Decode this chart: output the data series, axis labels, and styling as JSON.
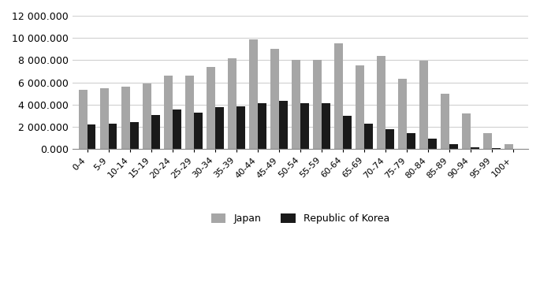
{
  "categories": [
    "0-4",
    "5-9",
    "10-14",
    "15-19",
    "20-24",
    "25-29",
    "30-34",
    "35-39",
    "40-44",
    "45-49",
    "50-54",
    "55-59",
    "60-64",
    "65-69",
    "70-74",
    "75-79",
    "80-84",
    "85-89",
    "90-94",
    "95-99",
    "100+"
  ],
  "japan": [
    5300,
    5500,
    5600,
    5900,
    6600,
    6600,
    7400,
    8200,
    9900,
    9000,
    8000,
    8050,
    9500,
    7550,
    8350,
    6350,
    7950,
    4950,
    3200,
    1450,
    450
  ],
  "korea": [
    2200,
    2250,
    2450,
    3050,
    3550,
    3300,
    3750,
    3800,
    4150,
    4350,
    4150,
    4150,
    3000,
    2300,
    1750,
    1400,
    950,
    400,
    130,
    60,
    10
  ],
  "japan_color": "#a6a6a6",
  "korea_color": "#1a1a1a",
  "ylim": [
    0,
    12000
  ],
  "yticks": [
    0,
    2000,
    4000,
    6000,
    8000,
    10000,
    12000
  ],
  "legend_japan": "Japan",
  "legend_korea": "Republic of Korea",
  "background_color": "#ffffff",
  "grid_color": "#d0d0d0"
}
